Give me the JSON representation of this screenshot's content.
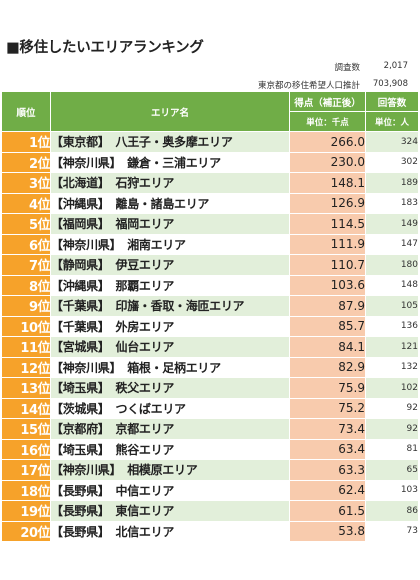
{
  "title": "■移住したいエリアランキング",
  "meta": {
    "respondents_label": "調査数",
    "respondents_value": "2,017",
    "population_label": "東京都の移住希望人口推計",
    "population_value": "703,908"
  },
  "table": {
    "headers": {
      "rank": "順位",
      "area": "エリア名",
      "score": "得点（補正後）",
      "score_unit": "単位：千点",
      "responses": "回答数",
      "responses_unit": "単位：人"
    },
    "rows": [
      {
        "rank": "1位",
        "pref": "【東京都】",
        "area": "八王子・奥多摩エリア",
        "score": "266.0",
        "responses": "324"
      },
      {
        "rank": "2位",
        "pref": "【神奈川県】",
        "area": "鎌倉・三浦エリア",
        "score": "230.0",
        "responses": "302"
      },
      {
        "rank": "3位",
        "pref": "【北海道】",
        "area": "石狩エリア",
        "score": "148.1",
        "responses": "189"
      },
      {
        "rank": "4位",
        "pref": "【沖縄県】",
        "area": "離島・諸島エリア",
        "score": "126.9",
        "responses": "183"
      },
      {
        "rank": "5位",
        "pref": "【福岡県】",
        "area": "福岡エリア",
        "score": "114.5",
        "responses": "149"
      },
      {
        "rank": "6位",
        "pref": "【神奈川県】",
        "area": "湘南エリア",
        "score": "111.9",
        "responses": "147"
      },
      {
        "rank": "7位",
        "pref": "【静岡県】",
        "area": "伊豆エリア",
        "score": "110.7",
        "responses": "180"
      },
      {
        "rank": "8位",
        "pref": "【沖縄県】",
        "area": "那覇エリア",
        "score": "103.6",
        "responses": "148"
      },
      {
        "rank": "9位",
        "pref": "【千葉県】",
        "area": "印旛・香取・海匝エリア",
        "score": "87.9",
        "responses": "105"
      },
      {
        "rank": "10位",
        "pref": "【千葉県】",
        "area": "外房エリア",
        "score": "85.7",
        "responses": "136"
      },
      {
        "rank": "11位",
        "pref": "【宮城県】",
        "area": "仙台エリア",
        "score": "84.1",
        "responses": "121"
      },
      {
        "rank": "12位",
        "pref": "【神奈川県】",
        "area": "箱根・足柄エリア",
        "score": "82.9",
        "responses": "132"
      },
      {
        "rank": "13位",
        "pref": "【埼玉県】",
        "area": "秩父エリア",
        "score": "75.9",
        "responses": "102"
      },
      {
        "rank": "14位",
        "pref": "【茨城県】",
        "area": "つくばエリア",
        "score": "75.2",
        "responses": "92"
      },
      {
        "rank": "15位",
        "pref": "【京都府】",
        "area": "京都エリア",
        "score": "73.4",
        "responses": "92"
      },
      {
        "rank": "16位",
        "pref": "【埼玉県】",
        "area": "熊谷エリア",
        "score": "63.4",
        "responses": "81"
      },
      {
        "rank": "17位",
        "pref": "【神奈川県】",
        "area": "相模原エリア",
        "score": "63.3",
        "responses": "65"
      },
      {
        "rank": "18位",
        "pref": "【長野県】",
        "area": "中信エリア",
        "score": "62.4",
        "responses": "103"
      },
      {
        "rank": "19位",
        "pref": "【長野県】",
        "area": "東信エリア",
        "score": "61.5",
        "responses": "86"
      },
      {
        "rank": "20位",
        "pref": "【長野県】",
        "area": "北信エリア",
        "score": "53.8",
        "responses": "73"
      }
    ]
  }
}
